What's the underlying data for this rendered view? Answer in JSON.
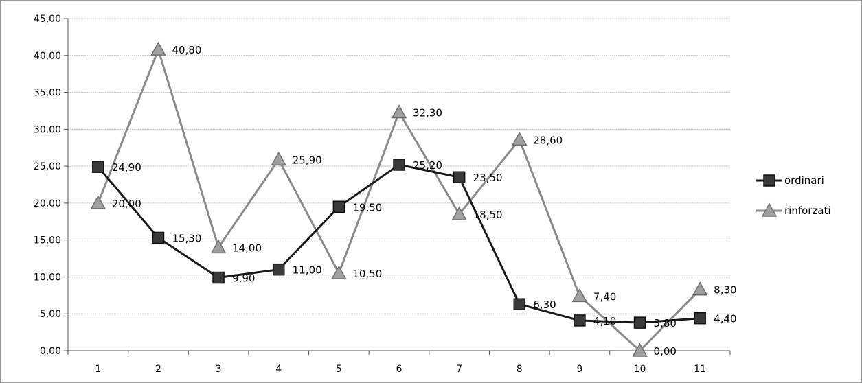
{
  "chart_data": {
    "type": "line",
    "title": "",
    "xlabel": "",
    "ylabel": "",
    "categories": [
      "1",
      "2",
      "3",
      "4",
      "5",
      "6",
      "7",
      "8",
      "9",
      "10",
      "11"
    ],
    "ylim": [
      0,
      45
    ],
    "y_ticks": [
      "0,00",
      "5,00",
      "10,00",
      "15,00",
      "20,00",
      "25,00",
      "30,00",
      "35,00",
      "40,00",
      "45,00"
    ],
    "grid": true,
    "legend_position": "right",
    "series": [
      {
        "name": "ordinari",
        "marker": "square",
        "color": "#1a1a1a",
        "values": [
          24.9,
          15.3,
          9.9,
          11.0,
          19.5,
          25.2,
          23.5,
          6.3,
          4.1,
          3.8,
          4.4
        ],
        "labels": [
          "24,90",
          "15,30",
          "9,90",
          "11,00",
          "19,50",
          "25,20",
          "23,50",
          "6,30",
          "4,10",
          "3,80",
          "4,40"
        ]
      },
      {
        "name": "rinforzati",
        "marker": "triangle",
        "color": "#8a8a8a",
        "values": [
          20.0,
          40.8,
          14.0,
          25.9,
          10.5,
          32.3,
          18.5,
          28.6,
          7.4,
          0.0,
          8.3
        ],
        "labels": [
          "20,00",
          "40,80",
          "14,00",
          "25,90",
          "10,50",
          "32,30",
          "18,50",
          "28,60",
          "7,40",
          "0,00",
          "8,30"
        ]
      }
    ]
  }
}
